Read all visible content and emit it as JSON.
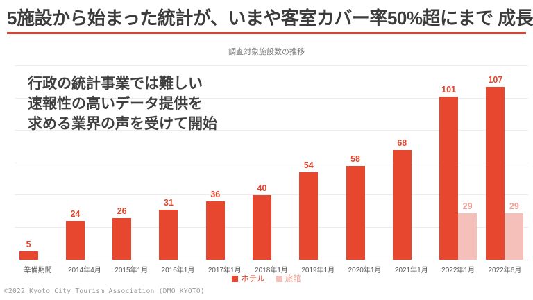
{
  "header": {
    "title": "5施設から始まった統計が、いまや客室カバー率50%超にまで 成長"
  },
  "annotation": {
    "lines": [
      "行政の統計事業では難しい",
      "速報性の高いデータ提供を",
      "求める業界の声を受けて開始"
    ]
  },
  "chart_data": {
    "type": "bar",
    "title": "調査対象施設数の推移",
    "categories": [
      "準備期間",
      "2014年4月",
      "2015年1月",
      "2016年1月",
      "2017年1月",
      "2018年1月",
      "2019年1月",
      "2020年1月",
      "2021年1月",
      "2022年1月",
      "2022年6月"
    ],
    "series": [
      {
        "name": "ホテル",
        "color": "#e8472f",
        "label_color": "#e0452e",
        "values": [
          5,
          24,
          26,
          31,
          36,
          40,
          54,
          58,
          68,
          101,
          107
        ]
      },
      {
        "name": "旅館",
        "color": "#f5c0b9",
        "label_color": "#ec9c92",
        "values": [
          null,
          null,
          null,
          null,
          null,
          null,
          null,
          null,
          null,
          29,
          29
        ]
      }
    ],
    "xlabel": "",
    "ylabel": "",
    "ylim": [
      0,
      120
    ],
    "grid_step": 20,
    "grid": true,
    "y_axis_labels_visible": false,
    "legend_position": "bottom"
  },
  "colors": {
    "accent_red": "#e8472f",
    "accent_pink": "#f5c0b9",
    "title_rule": "#dc4331",
    "gridline": "#ededed",
    "axis_line": "#d9d9d9"
  },
  "footer": {
    "copyright": "©2022 Kyoto City Tourism Association (DMO KYOTO)"
  }
}
